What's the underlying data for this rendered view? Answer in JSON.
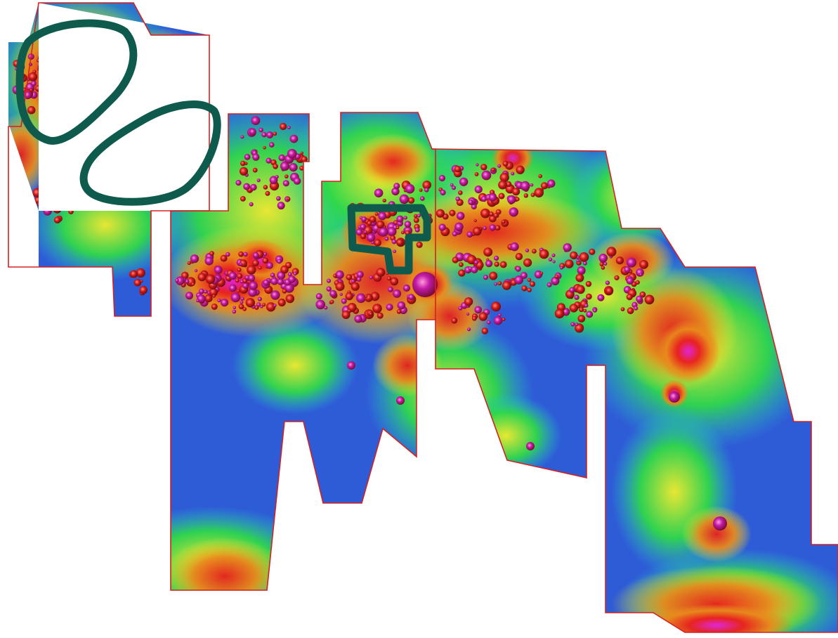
{
  "map": {
    "kind": "gridded-survey-heatmap",
    "background": "#ffffff",
    "boundary_color": "#d62020",
    "annotation_color": "#0e5a4c",
    "color_ramp": [
      {
        "level": "very-low",
        "color": "#2e5bd6"
      },
      {
        "level": "low",
        "color": "#22c4d4"
      },
      {
        "level": "low-mid",
        "color": "#2fd84a"
      },
      {
        "level": "mid",
        "color": "#f2ee2a"
      },
      {
        "level": "mid-high",
        "color": "#e8891c"
      },
      {
        "level": "high",
        "color": "#e81e1e"
      },
      {
        "level": "very-high",
        "color": "#e020e0"
      }
    ],
    "annotations": [
      {
        "name": "annotation-ellipse-northwest",
        "shape": "ellipse"
      },
      {
        "name": "annotation-ellipse-west-central",
        "shape": "ellipse"
      },
      {
        "name": "annotation-polygon-central",
        "shape": "polygon"
      }
    ],
    "survey_blocks": [
      "block-far-west",
      "block-west-tall",
      "block-central-narrow",
      "block-central",
      "block-east-main",
      "block-far-east"
    ]
  }
}
